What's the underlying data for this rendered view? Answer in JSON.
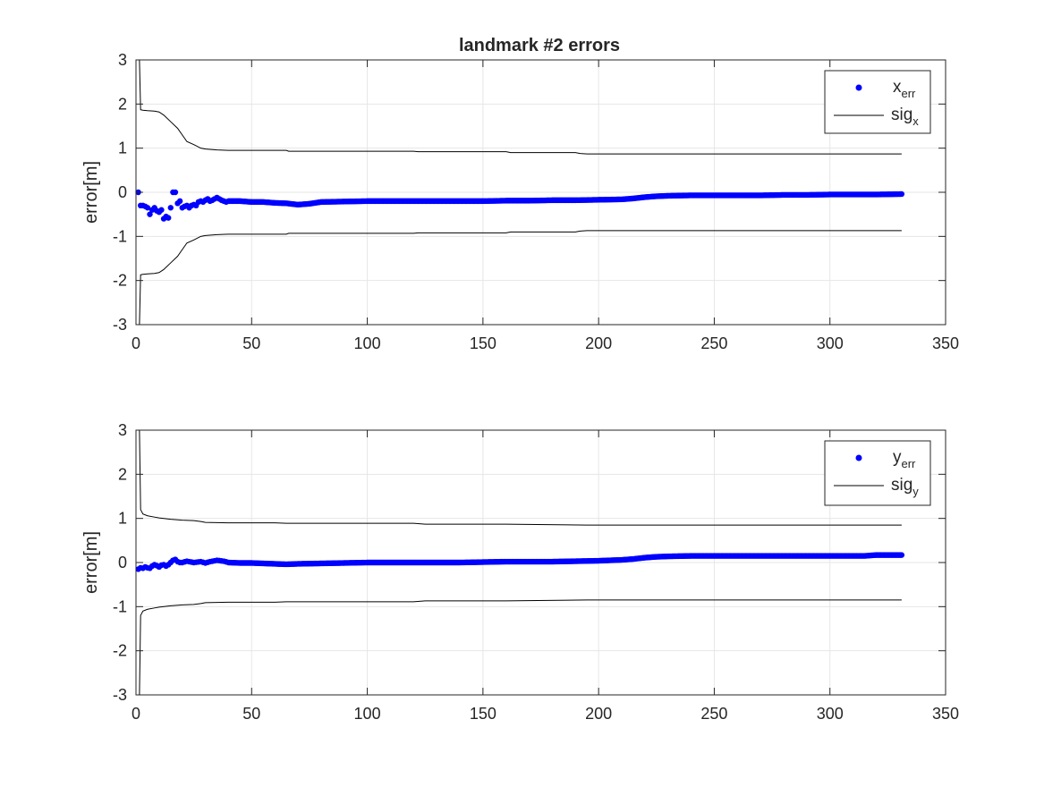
{
  "chart_data": [
    {
      "type": "scatter",
      "title": "landmark #2 errors",
      "xlabel": "",
      "ylabel": "error[m]",
      "xlim": [
        0,
        350
      ],
      "ylim": [
        -3,
        3
      ],
      "xticks": [
        0,
        50,
        100,
        150,
        200,
        250,
        300,
        350
      ],
      "yticks": [
        -3,
        -2,
        -1,
        0,
        1,
        2,
        3
      ],
      "xtick_labels": [
        "0",
        "50",
        "100",
        "150",
        "200",
        "250",
        "300",
        "350"
      ],
      "ytick_labels": [
        "-3",
        "-2",
        "-1",
        "0",
        "1",
        "2",
        "3"
      ],
      "grid": true,
      "legend_position": "top-right",
      "colors": {
        "error": "#0000ff",
        "sigma": "#000000",
        "axes": "#262626",
        "grid": "#e6e6e6"
      },
      "series": [
        {
          "name": "x",
          "name_sub": "err",
          "kind": "points",
          "x": [
            1,
            2,
            3,
            4,
            5,
            6,
            7,
            8,
            9,
            10,
            11,
            12,
            13,
            14,
            15,
            16,
            17,
            18,
            19,
            20,
            21,
            22,
            23,
            24,
            25,
            26,
            27,
            28,
            29,
            30,
            31,
            32,
            33,
            34,
            35,
            36,
            37,
            38,
            39,
            40,
            45,
            50,
            55,
            60,
            65,
            70,
            75,
            80,
            90,
            100,
            110,
            120,
            130,
            140,
            150,
            160,
            170,
            180,
            190,
            200,
            210,
            215,
            220,
            225,
            230,
            240,
            250,
            260,
            270,
            280,
            290,
            300,
            310,
            320,
            331
          ],
          "y": [
            0.0,
            -0.3,
            -0.3,
            -0.32,
            -0.35,
            -0.5,
            -0.4,
            -0.35,
            -0.42,
            -0.45,
            -0.4,
            -0.6,
            -0.55,
            -0.58,
            -0.35,
            0.0,
            0.0,
            -0.25,
            -0.2,
            -0.35,
            -0.32,
            -0.3,
            -0.35,
            -0.3,
            -0.28,
            -0.3,
            -0.22,
            -0.2,
            -0.22,
            -0.18,
            -0.15,
            -0.2,
            -0.18,
            -0.15,
            -0.12,
            -0.15,
            -0.18,
            -0.2,
            -0.22,
            -0.2,
            -0.2,
            -0.22,
            -0.22,
            -0.24,
            -0.25,
            -0.28,
            -0.26,
            -0.22,
            -0.21,
            -0.2,
            -0.2,
            -0.2,
            -0.2,
            -0.2,
            -0.2,
            -0.19,
            -0.19,
            -0.18,
            -0.18,
            -0.17,
            -0.16,
            -0.14,
            -0.11,
            -0.09,
            -0.08,
            -0.07,
            -0.07,
            -0.07,
            -0.07,
            -0.06,
            -0.06,
            -0.05,
            -0.05,
            -0.05,
            -0.04
          ]
        },
        {
          "name": "sig",
          "name_sub": "x",
          "kind": "band",
          "x": [
            1,
            1.5,
            2,
            3,
            5,
            8,
            10,
            12,
            15,
            18,
            20,
            22,
            25,
            28,
            30,
            35,
            40,
            45,
            50,
            60,
            65,
            66,
            100,
            120,
            122,
            130,
            155,
            160,
            162,
            190,
            192,
            195,
            210,
            250,
            300,
            331
          ],
          "y": [
            3,
            3,
            1.87,
            1.86,
            1.85,
            1.84,
            1.82,
            1.75,
            1.6,
            1.45,
            1.3,
            1.15,
            1.08,
            1.0,
            0.98,
            0.96,
            0.95,
            0.95,
            0.95,
            0.95,
            0.95,
            0.93,
            0.93,
            0.93,
            0.92,
            0.92,
            0.92,
            0.92,
            0.9,
            0.9,
            0.88,
            0.87,
            0.87,
            0.87,
            0.87,
            0.87
          ]
        }
      ]
    },
    {
      "type": "scatter",
      "title": "",
      "xlabel": "",
      "ylabel": "error[m]",
      "xlim": [
        0,
        350
      ],
      "ylim": [
        -3,
        3
      ],
      "xticks": [
        0,
        50,
        100,
        150,
        200,
        250,
        300,
        350
      ],
      "yticks": [
        -3,
        -2,
        -1,
        0,
        1,
        2,
        3
      ],
      "xtick_labels": [
        "0",
        "50",
        "100",
        "150",
        "200",
        "250",
        "300",
        "350"
      ],
      "ytick_labels": [
        "-3",
        "-2",
        "-1",
        "0",
        "1",
        "2",
        "3"
      ],
      "grid": true,
      "legend_position": "top-right",
      "colors": {
        "error": "#0000ff",
        "sigma": "#000000",
        "axes": "#262626",
        "grid": "#e6e6e6"
      },
      "series": [
        {
          "name": "y",
          "name_sub": "err",
          "kind": "points",
          "x": [
            1,
            2,
            3,
            4,
            5,
            6,
            7,
            8,
            9,
            10,
            11,
            12,
            13,
            14,
            15,
            16,
            17,
            18,
            19,
            20,
            22,
            25,
            28,
            30,
            32,
            35,
            38,
            40,
            45,
            50,
            55,
            60,
            65,
            70,
            80,
            90,
            100,
            110,
            120,
            130,
            140,
            150,
            160,
            170,
            180,
            190,
            200,
            205,
            210,
            215,
            220,
            225,
            230,
            240,
            250,
            260,
            270,
            280,
            290,
            300,
            305,
            310,
            315,
            320,
            325,
            331
          ],
          "y": [
            -0.15,
            -0.12,
            -0.13,
            -0.1,
            -0.12,
            -0.13,
            -0.08,
            -0.05,
            -0.07,
            -0.1,
            -0.06,
            -0.05,
            -0.08,
            -0.05,
            0.0,
            0.05,
            0.07,
            0.02,
            0.0,
            0.0,
            0.03,
            0.0,
            0.02,
            -0.01,
            0.02,
            0.05,
            0.03,
            0.0,
            -0.01,
            -0.01,
            -0.02,
            -0.03,
            -0.04,
            -0.03,
            -0.02,
            -0.01,
            0.0,
            0.0,
            0.0,
            0.0,
            0.0,
            0.01,
            0.02,
            0.02,
            0.02,
            0.03,
            0.04,
            0.05,
            0.06,
            0.08,
            0.11,
            0.13,
            0.14,
            0.15,
            0.15,
            0.15,
            0.15,
            0.15,
            0.15,
            0.15,
            0.15,
            0.15,
            0.15,
            0.17,
            0.17,
            0.17
          ]
        },
        {
          "name": "sig",
          "name_sub": "y",
          "kind": "band",
          "x": [
            1,
            1.5,
            2,
            3,
            5,
            8,
            10,
            15,
            20,
            25,
            28,
            30,
            40,
            50,
            60,
            65,
            100,
            120,
            125,
            160,
            195,
            200,
            250,
            300,
            331
          ],
          "y": [
            3,
            3,
            1.2,
            1.1,
            1.06,
            1.03,
            1.01,
            0.98,
            0.96,
            0.95,
            0.93,
            0.91,
            0.9,
            0.9,
            0.9,
            0.89,
            0.89,
            0.89,
            0.87,
            0.87,
            0.85,
            0.85,
            0.85,
            0.85,
            0.85
          ]
        }
      ]
    }
  ]
}
